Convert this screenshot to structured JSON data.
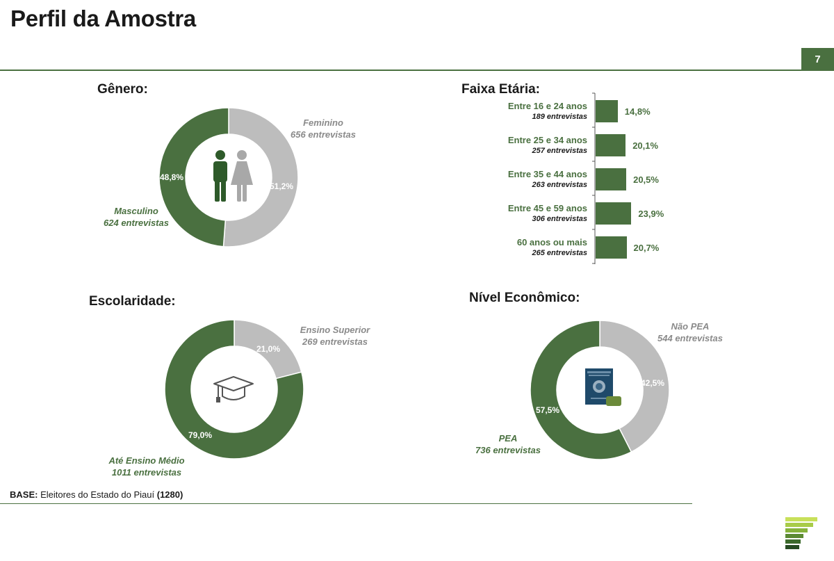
{
  "header": {
    "title": "Perfil da Amostra",
    "page_number": "7",
    "accent_color": "#4a7040",
    "secondary_color": "#bdbdbd"
  },
  "footer": {
    "base_label": "BASE:",
    "base_text": " Eleitores do Estado do Piauí ",
    "base_total": "(1280)"
  },
  "chart_data": [
    {
      "type": "pie",
      "title": "Gênero:",
      "slices": [
        {
          "name": "Feminino",
          "detail": "656 entrevistas",
          "value": 51.2,
          "label": "51,2%",
          "color": "#bdbdbd"
        },
        {
          "name": "Masculino",
          "detail": "624 entrevistas",
          "value": 48.8,
          "label": "48,8%",
          "color": "#4a7040"
        }
      ],
      "center_icon": "man-woman-icon"
    },
    {
      "type": "bar",
      "orientation": "horizontal",
      "title": "Faixa Etária:",
      "categories": [
        "Entre 16 e 24 anos",
        "Entre 25 e 34 anos",
        "Entre 35 e 44 anos",
        "Entre 45 e 59 anos",
        "60 anos ou mais"
      ],
      "sublabels": [
        "189 entrevistas",
        "257 entrevistas",
        "263 entrevistas",
        "306 entrevistas",
        "265 entrevistas"
      ],
      "values": [
        14.8,
        20.1,
        20.5,
        23.9,
        20.7
      ],
      "value_labels": [
        "14,8%",
        "20,1%",
        "20,5%",
        "23,9%",
        "20,7%"
      ],
      "color": "#4a7040"
    },
    {
      "type": "pie",
      "title": "Escolaridade:",
      "slices": [
        {
          "name": "Ensino Superior",
          "detail": "269 entrevistas",
          "value": 21.0,
          "label": "21,0%",
          "color": "#bdbdbd"
        },
        {
          "name": "Até Ensino Médio",
          "detail": "1011 entrevistas",
          "value": 79.0,
          "label": "79,0%",
          "color": "#4a7040"
        }
      ],
      "center_icon": "graduation-cap-icon"
    },
    {
      "type": "pie",
      "title": "Nível Econômico:",
      "slices": [
        {
          "name": "Não PEA",
          "detail": "544 entrevistas",
          "value": 42.5,
          "label": "42,5%",
          "color": "#bdbdbd"
        },
        {
          "name": "PEA",
          "detail": "736 entrevistas",
          "value": 57.5,
          "label": "57,5%",
          "color": "#4a7040"
        }
      ],
      "center_icon": "work-card-icon"
    }
  ]
}
